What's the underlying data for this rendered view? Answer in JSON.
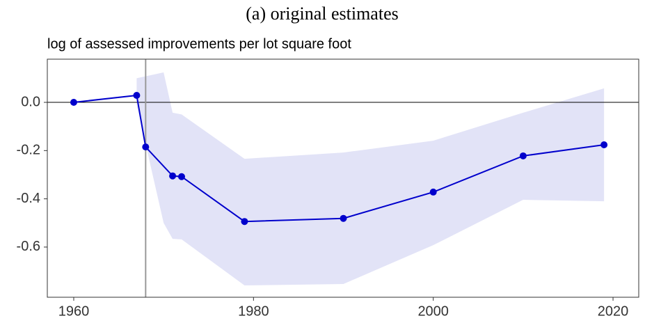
{
  "chart_data": {
    "type": "line",
    "title": "(a) original estimates",
    "subtitle": "log of assessed improvements per lot square foot",
    "x": [
      1960,
      1967,
      1968,
      1971,
      1972,
      1979,
      1990,
      2000,
      2010,
      2019
    ],
    "series": [
      {
        "color": "#0000cc",
        "values": [
          0.0,
          0.029,
          -0.185,
          -0.305,
          -0.308,
          -0.494,
          -0.481,
          -0.372,
          -0.222,
          -0.176
        ]
      }
    ],
    "band": {
      "color": "#e2e3f7",
      "x": [
        1967,
        1970,
        1971,
        1972,
        1979,
        1990,
        2000,
        2010,
        2019
      ],
      "upper": [
        0.1,
        0.124,
        -0.043,
        -0.05,
        -0.234,
        -0.208,
        -0.159,
        -0.043,
        0.058
      ],
      "lower": [
        -0.01,
        -0.5,
        -0.566,
        -0.568,
        -0.759,
        -0.753,
        -0.592,
        -0.404,
        -0.41
      ]
    },
    "vline": 1968,
    "hline": 0,
    "xlim": [
      1957.06,
      2022.86
    ],
    "ylim": [
      -0.808,
      0.179
    ],
    "xticks": [
      1960,
      1980,
      2000,
      2020
    ],
    "yticks": [
      {
        "value": 0,
        "label": "0.0"
      },
      -0.2,
      -0.4,
      -0.6
    ]
  }
}
